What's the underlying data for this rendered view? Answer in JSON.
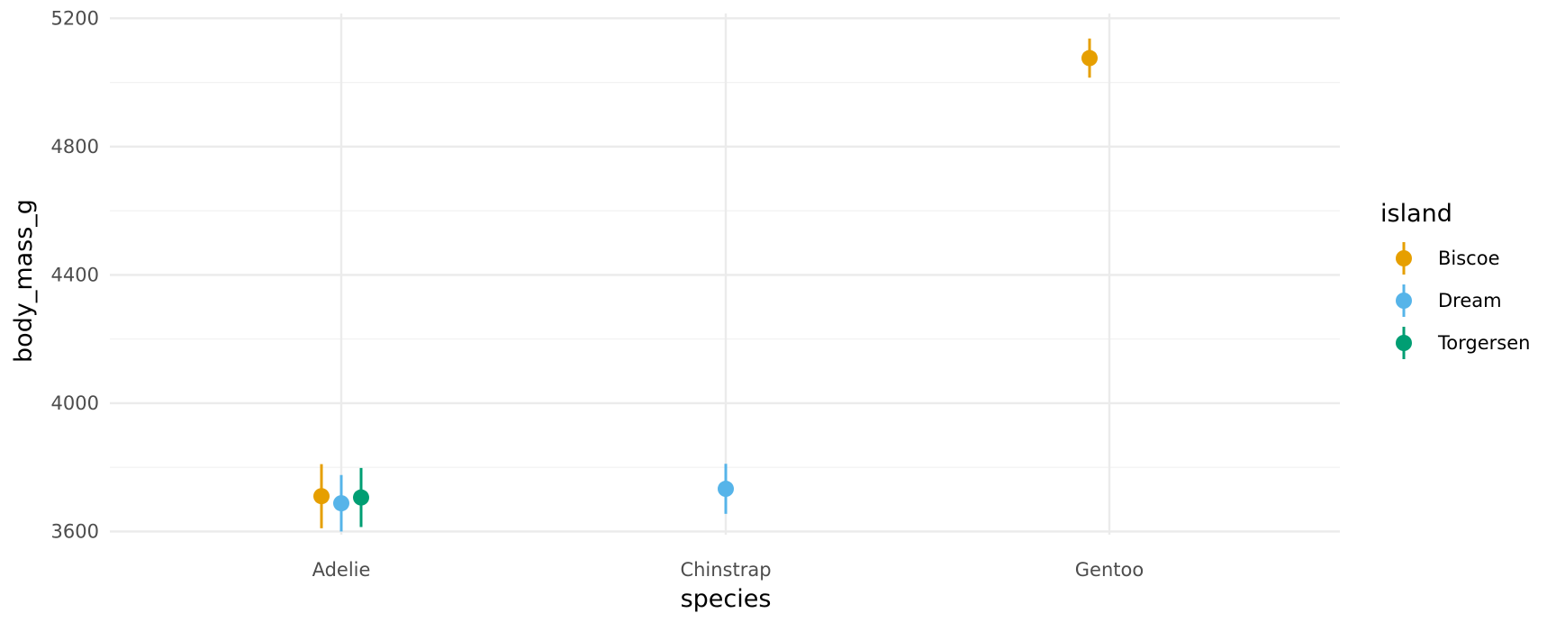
{
  "chart_data": {
    "type": "scatter",
    "xlabel": "species",
    "ylabel": "body_mass_g",
    "categories": [
      "Adelie",
      "Chinstrap",
      "Gentoo"
    ],
    "ylim": [
      3590,
      5215
    ],
    "yticks": [
      3600,
      4000,
      4400,
      4800,
      5200
    ],
    "grid": true,
    "legend": {
      "title": "island",
      "position": "right"
    },
    "series": [
      {
        "name": "Biscoe",
        "color": "#E69F00",
        "points": [
          {
            "category": "Adelie",
            "y": 3710,
            "ymin": 3610,
            "ymax": 3810
          },
          {
            "category": "Gentoo",
            "y": 5076,
            "ymin": 5015,
            "ymax": 5137
          }
        ]
      },
      {
        "name": "Dream",
        "color": "#56B4E9",
        "points": [
          {
            "category": "Adelie",
            "y": 3688,
            "ymin": 3600,
            "ymax": 3776
          },
          {
            "category": "Chinstrap",
            "y": 3733,
            "ymin": 3655,
            "ymax": 3811
          }
        ]
      },
      {
        "name": "Torgersen",
        "color": "#009E73",
        "points": [
          {
            "category": "Adelie",
            "y": 3706,
            "ymin": 3614,
            "ymax": 3798
          }
        ]
      }
    ]
  }
}
